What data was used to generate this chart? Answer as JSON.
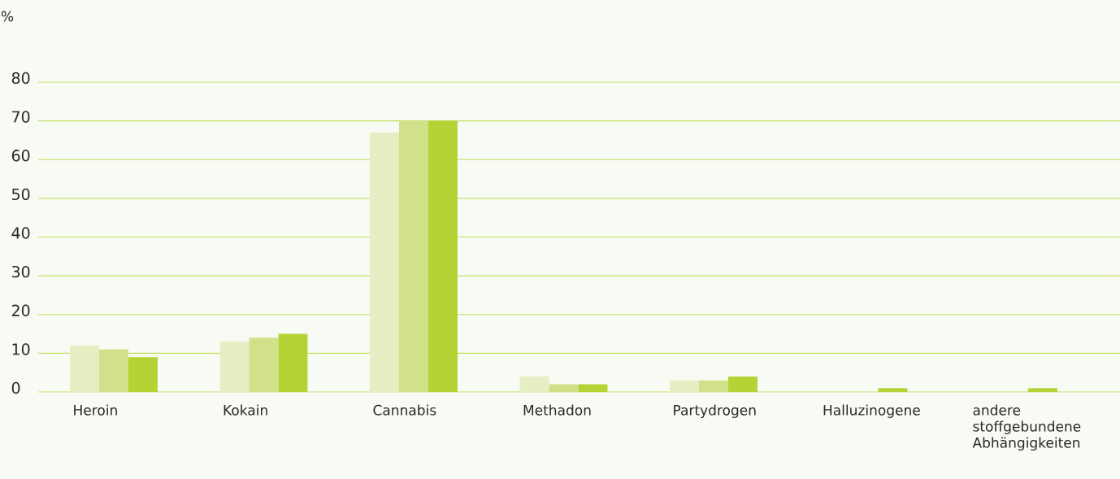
{
  "chart_data": {
    "type": "bar",
    "ylabel": "%",
    "categories": [
      "Heroin",
      "Kokain",
      "Cannabis",
      "Methadon",
      "Partydrogen",
      "Halluzinogene",
      "andere stoffgebundene Abhängigkeiten"
    ],
    "series": [
      {
        "color": "#e5efc3",
        "values": [
          12,
          13,
          67,
          4,
          3,
          0,
          0
        ]
      },
      {
        "color": "#d1e18a",
        "values": [
          11,
          14,
          70,
          2,
          3,
          0,
          0
        ]
      },
      {
        "color": "#b5d334",
        "values": [
          9,
          15,
          70,
          2,
          4,
          1,
          1
        ]
      }
    ],
    "ylim": [
      0,
      80
    ],
    "yticks": [
      0,
      10,
      20,
      30,
      40,
      50,
      60,
      70,
      80
    ],
    "grid": "y"
  }
}
